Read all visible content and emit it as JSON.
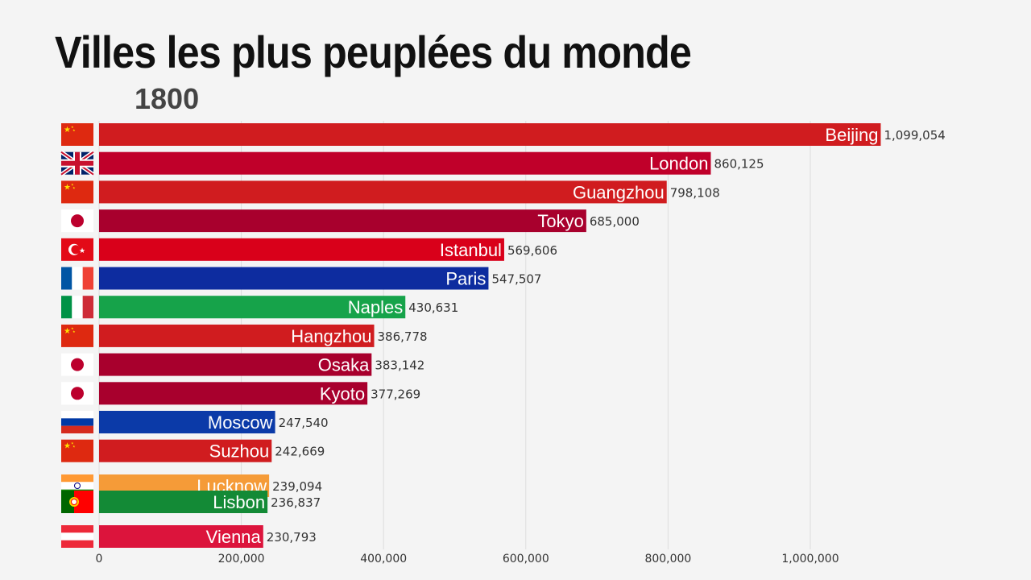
{
  "title": "Villes les plus peuplées du monde",
  "year": "1800",
  "chart_data": {
    "type": "bar",
    "orientation": "horizontal",
    "title": "Villes les plus peuplées du monde",
    "subtitle": "1800",
    "xlim": [
      0,
      1150000
    ],
    "grid": true,
    "ticks": [
      {
        "value": 0,
        "label": "0"
      },
      {
        "value": 200000,
        "label": "200,000"
      },
      {
        "value": 400000,
        "label": "400,000"
      },
      {
        "value": 600000,
        "label": "600,000"
      },
      {
        "value": 800000,
        "label": "800,000"
      },
      {
        "value": 1000000,
        "label": "1,000,000"
      }
    ],
    "bars": [
      {
        "city": "Beijing",
        "value": 1099054,
        "value_label": "1,099,054",
        "color": "#d01c1f",
        "flag": "china"
      },
      {
        "city": "London",
        "value": 860125,
        "value_label": "860,125",
        "color": "#c0002a",
        "flag": "uk"
      },
      {
        "city": "Guangzhou",
        "value": 798108,
        "value_label": "798,108",
        "color": "#d01c1f",
        "flag": "china"
      },
      {
        "city": "Tokyo",
        "value": 685000,
        "value_label": "685,000",
        "color": "#a8002d",
        "flag": "japan"
      },
      {
        "city": "Istanbul",
        "value": 569606,
        "value_label": "569,606",
        "color": "#d9001a",
        "flag": "turkey"
      },
      {
        "city": "Paris",
        "value": 547507,
        "value_label": "547,507",
        "color": "#0d2c9f",
        "flag": "france"
      },
      {
        "city": "Naples",
        "value": 430631,
        "value_label": "430,631",
        "color": "#16a34a",
        "flag": "italy"
      },
      {
        "city": "Hangzhou",
        "value": 386778,
        "value_label": "386,778",
        "color": "#d01c1f",
        "flag": "china"
      },
      {
        "city": "Osaka",
        "value": 383142,
        "value_label": "383,142",
        "color": "#a8002d",
        "flag": "japan"
      },
      {
        "city": "Kyoto",
        "value": 377269,
        "value_label": "377,269",
        "color": "#a8002d",
        "flag": "japan"
      },
      {
        "city": "Moscow",
        "value": 247540,
        "value_label": "247,540",
        "color": "#0b3aa8",
        "flag": "russia"
      },
      {
        "city": "Suzhou",
        "value": 242669,
        "value_label": "242,669",
        "color": "#d01c1f",
        "flag": "china"
      },
      {
        "city": "Lucknow",
        "value": 239094,
        "value_label": "239,094",
        "color": "#f59b38",
        "flag": "india"
      },
      {
        "city": "Lisbon",
        "value": 236837,
        "value_label": "236,837",
        "color": "#138a36",
        "flag": "portugal"
      },
      {
        "city": "Vienna",
        "value": 230793,
        "value_label": "230,793",
        "color": "#dc143c",
        "flag": "austria"
      }
    ]
  }
}
